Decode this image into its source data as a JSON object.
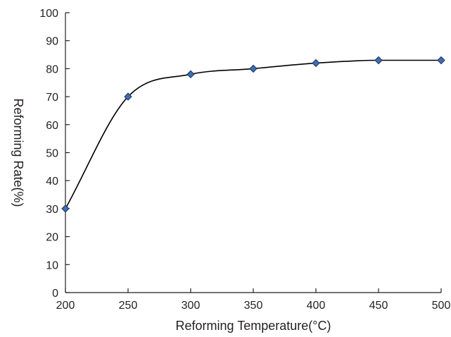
{
  "chart_data": {
    "type": "line",
    "title": "",
    "xlabel": "Reforming Temperature(°C)",
    "ylabel": "Reforming Rate(%)",
    "xlim": [
      200,
      500
    ],
    "ylim": [
      0,
      100
    ],
    "xticks": [
      200,
      250,
      300,
      350,
      400,
      450,
      500
    ],
    "yticks": [
      0,
      10,
      20,
      30,
      40,
      50,
      60,
      70,
      80,
      90,
      100
    ],
    "grid": false,
    "series": [
      {
        "x": [
          200,
          250,
          300,
          350,
          400,
          450,
          500
        ],
        "y": [
          30,
          70,
          78,
          80,
          82,
          83,
          83
        ],
        "line_color": "#000000",
        "marker": "diamond",
        "marker_fill": "#3d6eb4",
        "marker_edge": "#1a2f5a",
        "smooth": true
      }
    ]
  }
}
